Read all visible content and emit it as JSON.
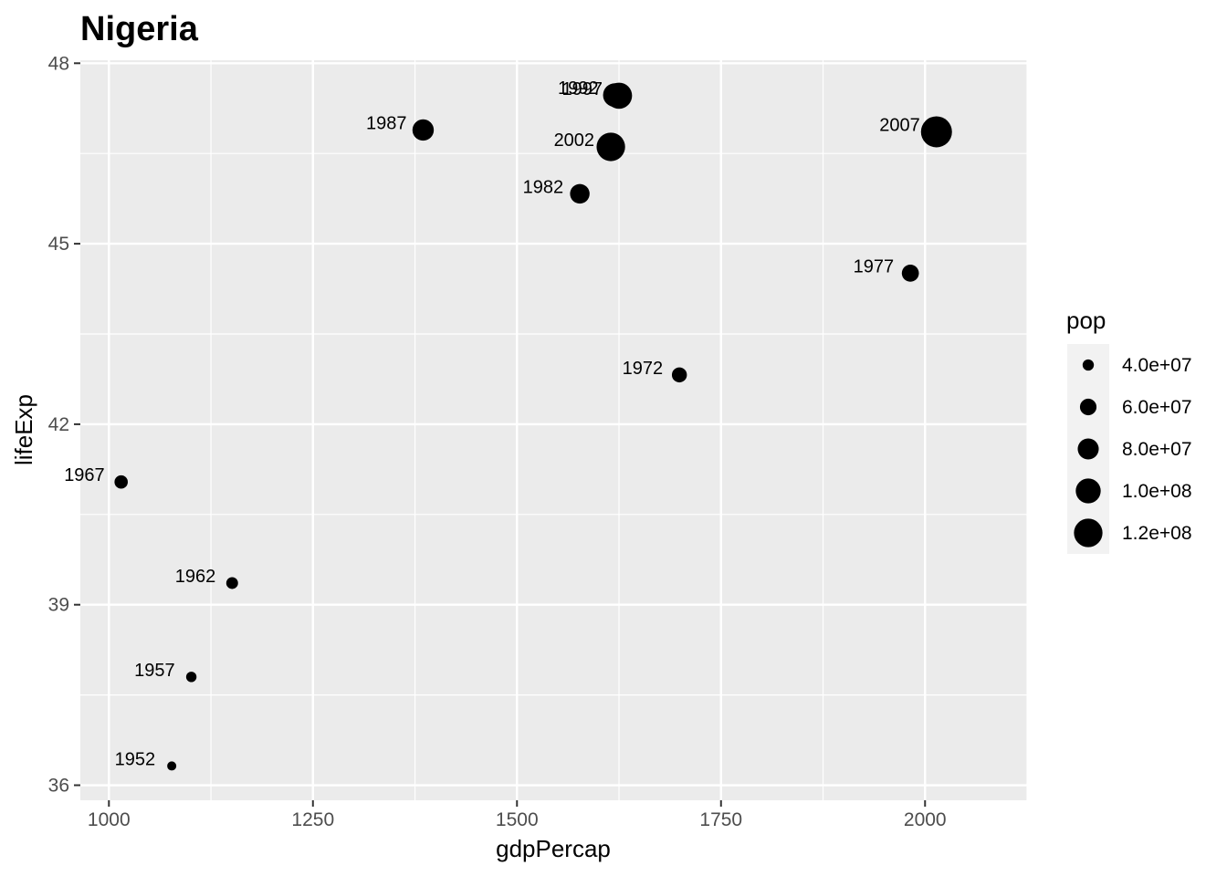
{
  "chart_data": {
    "type": "scatter",
    "title": "Nigeria",
    "xlabel": "gdpPercap",
    "ylabel": "lifeExp",
    "xlim": [
      965,
      2125
    ],
    "ylim": [
      35.75,
      48.05
    ],
    "x_ticks": [
      1000,
      1250,
      1500,
      1750,
      2000
    ],
    "x_tick_labels": [
      "1000",
      "1250",
      "1500",
      "1750",
      "2000"
    ],
    "y_ticks": [
      36,
      39,
      42,
      45,
      48
    ],
    "y_tick_labels": [
      "36",
      "39",
      "42",
      "45",
      "48"
    ],
    "grid": true,
    "size_variable": "pop",
    "legend": {
      "title": "pop",
      "position": "right",
      "entries": [
        {
          "label": "4.0e+07",
          "value": 40000000
        },
        {
          "label": "6.0e+07",
          "value": 60000000
        },
        {
          "label": "8.0e+07",
          "value": 80000000
        },
        {
          "label": "1.0e+08",
          "value": 100000000
        },
        {
          "label": "1.2e+08",
          "value": 120000000
        }
      ]
    },
    "points": [
      {
        "label": "1952",
        "x": 1077,
        "y": 36.32,
        "pop": 33119096
      },
      {
        "label": "1957",
        "x": 1101,
        "y": 37.8,
        "pop": 37173340
      },
      {
        "label": "1962",
        "x": 1151,
        "y": 39.36,
        "pop": 41871351
      },
      {
        "label": "1967",
        "x": 1015,
        "y": 41.04,
        "pop": 47287752
      },
      {
        "label": "1972",
        "x": 1699,
        "y": 42.82,
        "pop": 53740085
      },
      {
        "label": "1977",
        "x": 1982,
        "y": 44.51,
        "pop": 62209173
      },
      {
        "label": "1982",
        "x": 1577,
        "y": 45.83,
        "pop": 73039376
      },
      {
        "label": "1987",
        "x": 1385,
        "y": 46.89,
        "pop": 81551520
      },
      {
        "label": "1992",
        "x": 1620,
        "y": 47.47,
        "pop": 93364244
      },
      {
        "label": "1997",
        "x": 1625,
        "y": 47.46,
        "pop": 106207839
      },
      {
        "label": "2002",
        "x": 1615,
        "y": 46.61,
        "pop": 119901274
      },
      {
        "label": "2007",
        "x": 2014,
        "y": 46.86,
        "pop": 135031164
      }
    ],
    "colors": {
      "panel": "#ebebeb",
      "grid_major": "#ffffff",
      "point": "#000000",
      "tick_text": "#4d4d4d"
    }
  }
}
